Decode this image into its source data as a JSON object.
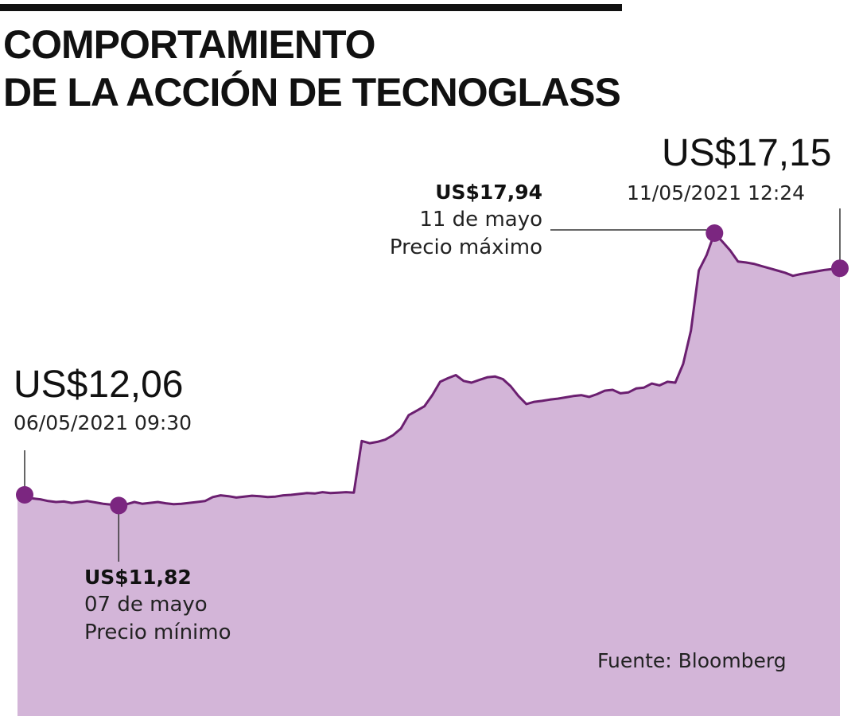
{
  "title": {
    "line1": "COMPORTAMIENTO",
    "line2": "DE LA ACCIÓN DE TECNOGLASS"
  },
  "colors": {
    "fill": "#d3b5d8",
    "line": "#6b1f70",
    "marker": "#7b2680",
    "text": "#111111"
  },
  "callouts": {
    "start": {
      "value": "US$12,06",
      "timestamp": "06/05/2021 09:30"
    },
    "end": {
      "value": "US$17,15",
      "timestamp": "11/05/2021 12:24"
    },
    "min": {
      "value": "US$11,82",
      "date": "07 de mayo",
      "label": "Precio mínimo"
    },
    "max": {
      "value": "US$17,94",
      "date": "11 de mayo",
      "label": "Precio máximo"
    }
  },
  "source": "Fuente: Bloomberg",
  "chart_data": {
    "type": "area",
    "title": "COMPORTAMIENTO DE LA ACCIÓN DE TECNOGLASS",
    "xlabel": "",
    "ylabel": "",
    "unit": "US$",
    "grid": false,
    "legend": "none",
    "x_range": [
      "06/05/2021 09:30",
      "11/05/2021 12:24"
    ],
    "ylim": [
      10.0,
      18.5
    ],
    "series": [
      {
        "name": "",
        "values": [
          12.06,
          11.98,
          11.96,
          11.92,
          11.9,
          11.91,
          11.88,
          11.9,
          11.92,
          11.89,
          11.86,
          11.84,
          11.82,
          11.85,
          11.9,
          11.86,
          11.88,
          11.9,
          11.87,
          11.85,
          11.86,
          11.88,
          11.9,
          11.92,
          12.01,
          12.05,
          12.03,
          12.0,
          12.02,
          12.04,
          12.03,
          12.01,
          12.02,
          12.05,
          12.06,
          12.08,
          12.1,
          12.09,
          12.12,
          12.1,
          12.11,
          12.12,
          12.11,
          13.27,
          13.22,
          13.25,
          13.3,
          13.4,
          13.55,
          13.85,
          13.95,
          14.05,
          14.3,
          14.6,
          14.68,
          14.75,
          14.62,
          14.58,
          14.64,
          14.7,
          14.72,
          14.66,
          14.5,
          14.28,
          14.1,
          14.15,
          14.17,
          14.2,
          14.22,
          14.25,
          14.28,
          14.3,
          14.26,
          14.32,
          14.4,
          14.42,
          14.34,
          14.36,
          14.45,
          14.47,
          14.56,
          14.52,
          14.6,
          14.58,
          15.0,
          15.75,
          17.1,
          17.45,
          17.94,
          17.75,
          17.55,
          17.3,
          17.28,
          17.25,
          17.2,
          17.15,
          17.1,
          17.05,
          16.98,
          17.02,
          17.05,
          17.08,
          17.11,
          17.13,
          17.15
        ]
      }
    ],
    "annotations": [
      {
        "point": "start",
        "x": "06/05/2021 09:30",
        "y": 12.06,
        "text": "US$12,06"
      },
      {
        "point": "min",
        "x": "07 de mayo",
        "y": 11.82,
        "text": "US$11,82"
      },
      {
        "point": "max",
        "x": "11 de mayo",
        "y": 17.94,
        "text": "US$17,94"
      },
      {
        "point": "end",
        "x": "11/05/2021 12:24",
        "y": 17.15,
        "text": "US$17,15"
      }
    ]
  }
}
